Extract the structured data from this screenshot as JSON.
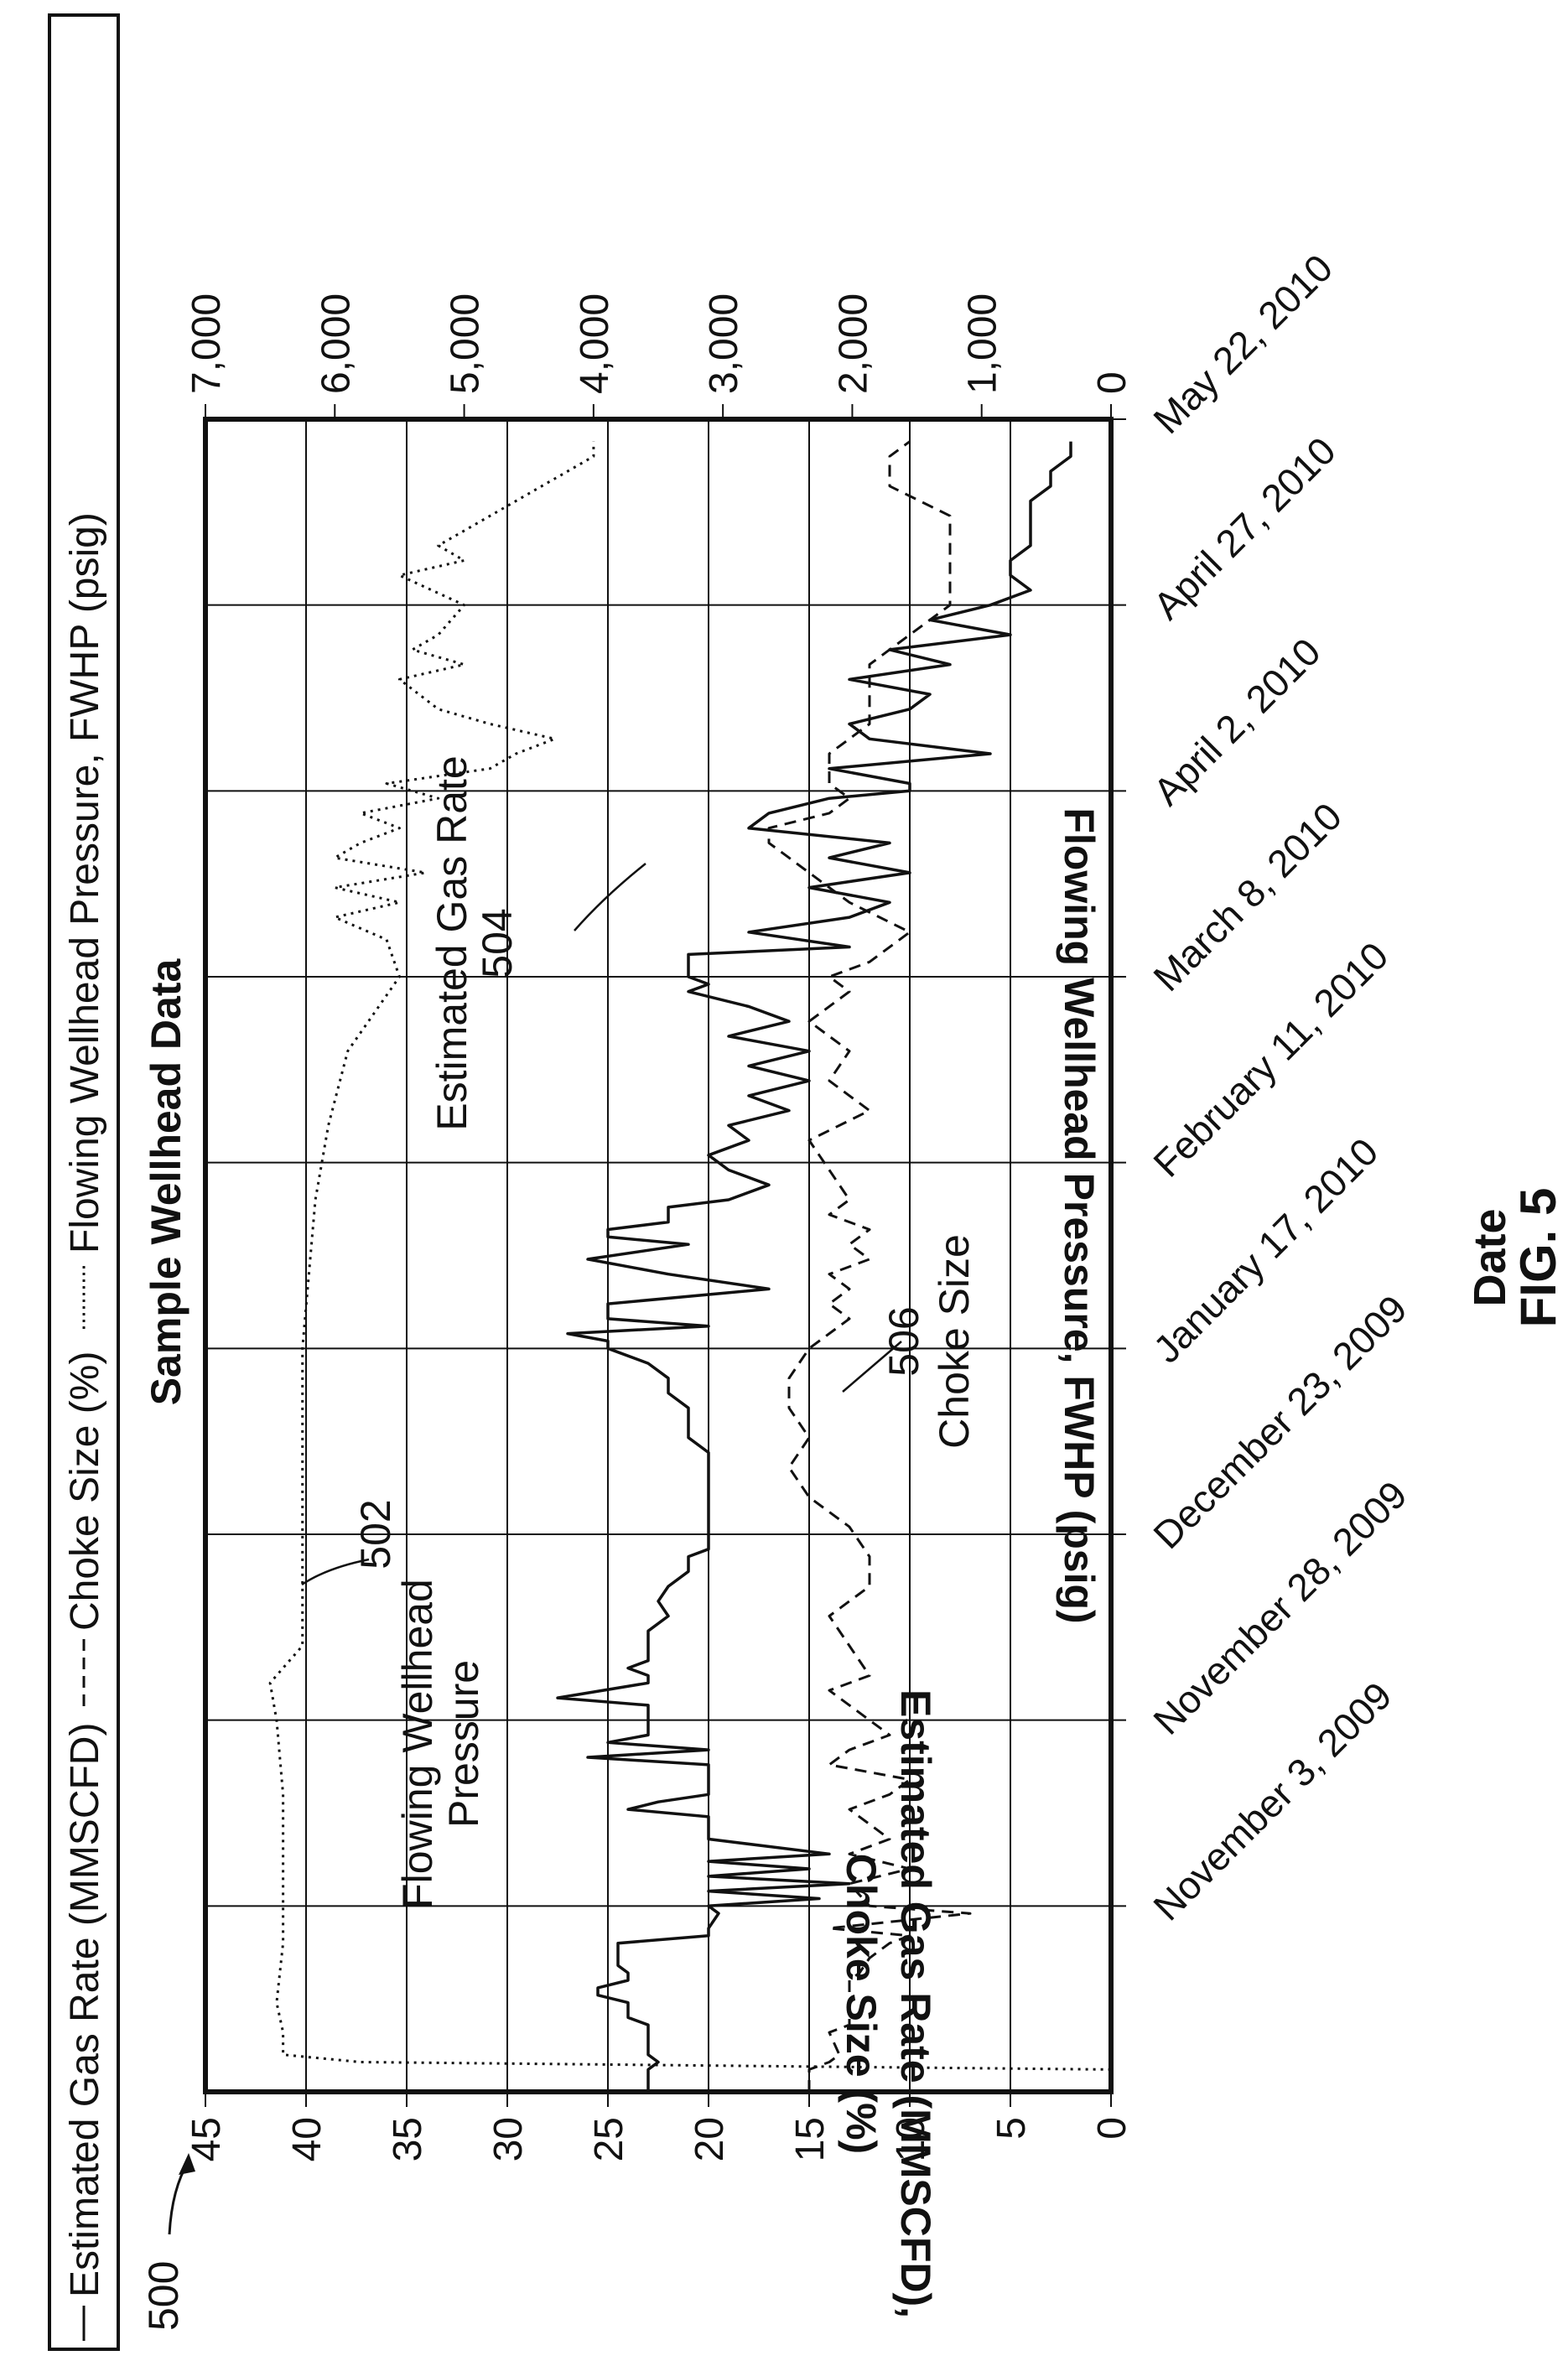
{
  "figure": {
    "ref_label": "500",
    "fig_label": "FIG. 5"
  },
  "legend": {
    "items": [
      {
        "label": "Estimated Gas Rate (MMSCFD)",
        "style": "solid"
      },
      {
        "label": "Choke Size (%)",
        "style": "dashed"
      },
      {
        "label": "Flowing Wellhead Pressure, FWHP (psig)",
        "style": "dotted"
      }
    ]
  },
  "annotations": [
    {
      "text": "Estimated Gas Rate",
      "ref": "504"
    },
    {
      "text": "Flowing Wellhead Pressure",
      "ref": "502"
    },
    {
      "text": "Choke Size",
      "ref": "506"
    }
  ],
  "chart_data": {
    "type": "line",
    "title": "Sample Wellhead Data",
    "xlabel": "Date",
    "ylabel_left": "Estimated Gas Rate (MMSCFD), Choke Size (%)",
    "ylabel_right": "Flowing Wellhead Pressure, FWHP (psig)",
    "x_ticks": [
      "November 3, 2009",
      "November 28, 2009",
      "December 23, 2009",
      "January 17, 2010",
      "February 11, 2010",
      "March 8, 2010",
      "April 2, 2010",
      "April 27, 2010",
      "May 22, 2010"
    ],
    "x_range": [
      "October 9, 2009",
      "May 22, 2010"
    ],
    "y_left_ticks": [
      "0",
      "5",
      "10",
      "15",
      "20",
      "25",
      "30",
      "35",
      "40",
      "45"
    ],
    "y_left_range": [
      0,
      45
    ],
    "y_right_ticks": [
      "0",
      "1,000",
      "2,000",
      "3,000",
      "4,000",
      "5,000",
      "6,000",
      "7,000"
    ],
    "y_right_range": [
      0,
      7000
    ],
    "grid": true,
    "legend_position": "top",
    "series": [
      {
        "name": "Estimated Gas Rate (MMSCFD)",
        "axis": "left",
        "style": "solid",
        "x": [
          0,
          3,
          4,
          5,
          9,
          10,
          12,
          13,
          14,
          15,
          16,
          17,
          20,
          21,
          22,
          24,
          25,
          26,
          27,
          28,
          29,
          30,
          31,
          32,
          34,
          35,
          37,
          38,
          39,
          40,
          41,
          42,
          44,
          45,
          46,
          47,
          48,
          49,
          50,
          52,
          53,
          55,
          56,
          57,
          58,
          59,
          60,
          62,
          64,
          66,
          68,
          70,
          72,
          73,
          74,
          75,
          76,
          77,
          78,
          79,
          80,
          81,
          82,
          83,
          84,
          86,
          88,
          90,
          92,
          94,
          96,
          98,
          100,
          101,
          102,
          103,
          104,
          106,
          108,
          110,
          112,
          114,
          115,
          116,
          117,
          118,
          119,
          120,
          122,
          124,
          126,
          128,
          130,
          132,
          134,
          136,
          138,
          140,
          142,
          144,
          146,
          148,
          149,
          150,
          151,
          152,
          153,
          154,
          156,
          158,
          160,
          162,
          164,
          166,
          168,
          170,
          172,
          174,
          175,
          176,
          178,
          180,
          182,
          184,
          186,
          188,
          190,
          192,
          194,
          196,
          198,
          200,
          202,
          204,
          206,
          208,
          210,
          212,
          214,
          216,
          218,
          220,
          222
        ],
        "values": [
          23,
          23,
          22.5,
          23,
          23,
          24,
          24,
          25.5,
          25.5,
          24,
          24,
          24.5,
          24.5,
          20,
          20,
          19.5,
          20,
          14.5,
          20,
          13,
          20,
          15,
          20,
          14,
          20,
          20,
          20,
          24,
          22.5,
          20,
          20,
          20,
          20,
          26,
          20,
          25,
          23,
          23,
          23,
          23,
          27.5,
          23,
          23,
          24,
          23,
          23,
          23,
          23,
          22,
          22.5,
          22,
          21,
          21,
          20,
          20,
          20,
          20,
          20,
          20,
          20,
          20,
          20,
          20,
          20,
          20,
          20,
          21,
          21,
          21,
          22,
          22,
          23,
          25,
          25,
          27,
          20,
          25,
          25,
          17,
          22,
          26,
          21,
          25,
          25,
          22,
          22,
          22,
          19,
          17,
          19,
          20,
          18,
          19,
          16,
          18,
          15,
          18,
          15,
          19,
          16,
          18,
          21,
          20,
          21,
          21,
          21,
          21,
          13,
          18,
          13,
          11,
          15,
          10,
          14,
          11,
          18,
          17,
          14,
          10,
          10,
          14,
          6,
          12,
          13,
          10,
          9,
          13,
          8,
          11,
          5,
          9,
          6,
          4,
          5,
          5,
          4,
          4,
          4,
          4,
          3,
          3,
          2,
          2
        ],
        "note": "x in days since October 9, 2009"
      },
      {
        "name": "Choke Size (%)",
        "axis": "left",
        "style": "dashed",
        "x": [
          0,
          3,
          4,
          5,
          8,
          9,
          15,
          16,
          18,
          20,
          21,
          22,
          24,
          25,
          28,
          30,
          32,
          34,
          36,
          38,
          40,
          42,
          44,
          46,
          48,
          50,
          52,
          54,
          56,
          60,
          64,
          68,
          72,
          76,
          80,
          84,
          88,
          92,
          96,
          100,
          104,
          106,
          108,
          110,
          112,
          114,
          116,
          118,
          120,
          124,
          128,
          132,
          136,
          140,
          144,
          148,
          150,
          152,
          156,
          160,
          164,
          166,
          168,
          170,
          172,
          174,
          176,
          180,
          184,
          188,
          192,
          196,
          200,
          204,
          208,
          212,
          216,
          220,
          222
        ],
        "values": [
          15,
          15,
          14,
          13.5,
          14,
          13,
          13,
          12.5,
          12,
          11,
          10,
          14,
          7,
          12,
          13,
          10,
          13,
          11,
          12,
          13,
          11,
          10,
          14,
          13,
          11,
          12,
          13,
          14,
          12,
          13,
          14,
          12,
          12,
          13,
          15,
          16,
          15,
          16,
          16,
          15,
          13,
          14,
          13,
          14,
          12,
          13,
          12,
          14,
          13,
          14,
          15,
          12,
          14,
          13,
          15,
          13,
          14,
          12,
          10,
          13,
          15,
          16,
          17,
          17,
          14,
          13,
          14,
          14,
          12,
          12,
          12,
          10,
          8,
          8,
          8,
          8,
          11,
          11,
          10
        ],
        "note": "x in days since October 9, 2009"
      },
      {
        "name": "Flowing Wellhead Pressure, FWHP (psig)",
        "axis": "right",
        "style": "dotted",
        "x": [
          0,
          2,
          3,
          4,
          5,
          8,
          12,
          20,
          30,
          40,
          50,
          55,
          60,
          70,
          80,
          90,
          100,
          110,
          120,
          130,
          140,
          145,
          150,
          155,
          158,
          160,
          162,
          164,
          166,
          168,
          170,
          172,
          174,
          176,
          178,
          180,
          182,
          184,
          186,
          190,
          192,
          194,
          196,
          200,
          204,
          206,
          208,
          212,
          216,
          218,
          220,
          222
        ],
        "values": [
          0,
          0,
          0,
          5800,
          6400,
          6400,
          6450,
          6400,
          6400,
          6400,
          6450,
          6500,
          6250,
          6250,
          6250,
          6250,
          6250,
          6200,
          6150,
          6050,
          5900,
          5700,
          5500,
          5600,
          6000,
          5500,
          6000,
          5300,
          6000,
          5800,
          5500,
          5800,
          5200,
          5600,
          4800,
          4600,
          4300,
          4800,
          5200,
          5500,
          5000,
          5400,
          5200,
          5000,
          5500,
          5000,
          5200,
          4800,
          4400,
          4200,
          4000,
          4000
        ],
        "note": "x in days since October 9, 2009"
      }
    ]
  }
}
